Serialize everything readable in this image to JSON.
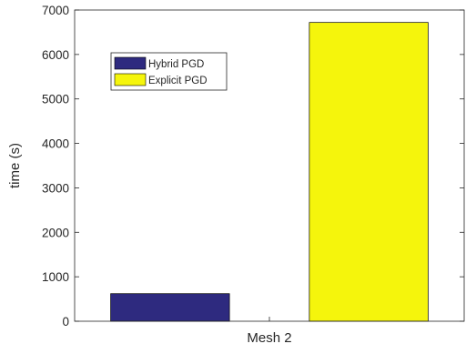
{
  "chart_data": {
    "type": "bar",
    "categories": [
      "Mesh 2"
    ],
    "series": [
      {
        "name": "Hybrid PGD",
        "values": [
          620
        ],
        "color": "#2e2a7f"
      },
      {
        "name": "Explicit PGD",
        "values": [
          6720
        ],
        "color": "#f5f50c"
      }
    ],
    "xlabel": "Mesh 2",
    "ylabel": "time (s)",
    "ylim": [
      0,
      7000
    ],
    "yticks": [
      0,
      1000,
      2000,
      3000,
      4000,
      5000,
      6000,
      7000
    ],
    "grid": false,
    "legend": "top-left"
  }
}
